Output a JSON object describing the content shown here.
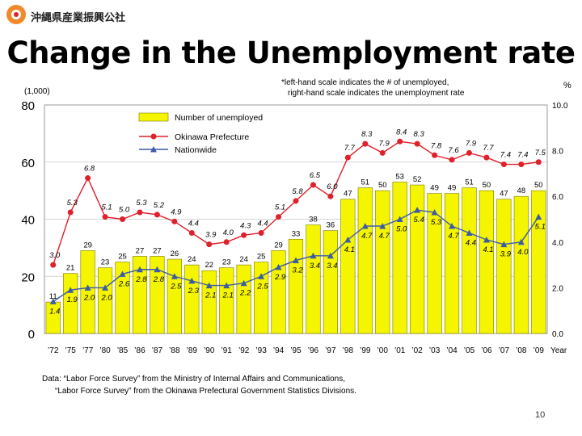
{
  "header": {
    "org_name": "沖縄県産業振興公社",
    "title": "Change in the Unemployment rate",
    "left_unit": "(1,000)",
    "right_unit": "%",
    "note_line1": "*left-hand scale indicates the # of unemployed,",
    "note_line2": "right-hand scale indicates the unemployment rate"
  },
  "footer": {
    "source_line1": "Data: “Labor Force Survey” from the Ministry of Internal Affairs and Communications,",
    "source_line2": "“Labor Force Survey” from the Okinawa Prefectural Government Statistics Divisions.",
    "page_number": "10"
  },
  "colors": {
    "bar": "#f5f500",
    "okinawa": "#e0202a",
    "nationwide": "#3c5aa8",
    "grid": "#c8c8c8"
  },
  "chart_data": {
    "type": "bar+line",
    "categories": [
      "’72",
      "’75",
      "’77",
      "’80",
      "’85",
      "’86",
      "’87",
      "’88",
      "’89",
      "’90",
      "’91",
      "’92",
      "’93",
      "’94",
      "’95",
      "’96",
      "’97",
      "’98",
      "’99",
      "’00",
      "’01",
      "’02",
      "’03",
      "’04",
      "’05",
      "’06",
      "’07",
      "’08",
      "’09"
    ],
    "x_axis_label": "Year",
    "left_axis": {
      "ticks": [
        "0",
        "20",
        "40",
        "60",
        "80"
      ],
      "range": [
        0,
        80
      ]
    },
    "right_axis": {
      "ticks": [
        "0.0",
        "2.0",
        "4.0",
        "6.0",
        "8.0",
        "10.0"
      ],
      "range": [
        0,
        10
      ]
    },
    "legend": [
      "Number of unemployed",
      "Okinawa Prefecture",
      "Nationwide"
    ],
    "series": [
      {
        "name": "Number of unemployed",
        "axis": "left",
        "kind": "bar",
        "values": [
          11,
          21,
          29,
          23,
          25,
          27,
          27,
          26,
          24,
          22,
          23,
          24,
          25,
          29,
          33,
          38,
          36,
          47,
          51,
          50,
          53,
          52,
          49,
          49,
          51,
          50,
          47,
          48,
          50
        ]
      },
      {
        "name": "Okinawa Prefecture",
        "axis": "right",
        "kind": "line",
        "values": [
          3.0,
          5.3,
          6.8,
          5.1,
          5.0,
          5.3,
          5.2,
          4.9,
          4.4,
          3.9,
          4.0,
          4.3,
          4.4,
          5.1,
          5.8,
          6.5,
          6.0,
          7.7,
          8.3,
          7.9,
          8.4,
          8.3,
          7.8,
          7.6,
          7.9,
          7.7,
          7.4,
          7.4,
          7.5
        ]
      },
      {
        "name": "Nationwide",
        "axis": "right",
        "kind": "line",
        "values": [
          1.4,
          1.9,
          2.0,
          2.0,
          2.6,
          2.8,
          2.8,
          2.5,
          2.3,
          2.1,
          2.1,
          2.2,
          2.5,
          2.9,
          3.2,
          3.4,
          3.4,
          4.1,
          4.7,
          4.7,
          5.0,
          5.4,
          5.3,
          4.7,
          4.4,
          4.1,
          3.9,
          4.0,
          5.1
        ]
      }
    ],
    "bar_labels": [
      "11",
      "21",
      "29",
      "23",
      "25",
      "27",
      "27",
      "26",
      "24",
      "22",
      "23",
      "24",
      "25",
      "29",
      "33",
      "38",
      "36",
      "47",
      "51",
      "50",
      "53",
      "52",
      "49",
      "49",
      "51",
      "50",
      "47",
      "48",
      "50"
    ],
    "okinawa_labels": [
      "3.0",
      "5.3",
      "6.8",
      "5.1",
      "5.0",
      "5.3",
      "5.2",
      "4.9",
      "4.4",
      "3.9",
      "4.0",
      "4.3",
      "4.4",
      "5.1",
      "5.8",
      "6.5",
      "6.0",
      "7.7",
      "8.3",
      "7.9",
      "8.4",
      "8.3",
      "7.8",
      "7.6",
      "7.9",
      "7.7",
      "7.4",
      "7.4",
      "7.5"
    ],
    "nationwide_labels": [
      "1.4",
      "1.9",
      "2.0",
      "2.0",
      "2.6",
      "2.8",
      "2.8",
      "2.5",
      "2.3",
      "2.1",
      "2.1",
      "2.2",
      "2.5",
      "2.9",
      "3.2",
      "3.4",
      "3.4",
      "4.1",
      "4.7",
      "4.7",
      "5.0",
      "5.4",
      "5.3",
      "4.7",
      "4.4",
      "4.1",
      "3.9",
      "4.0",
      "5.1"
    ]
  }
}
